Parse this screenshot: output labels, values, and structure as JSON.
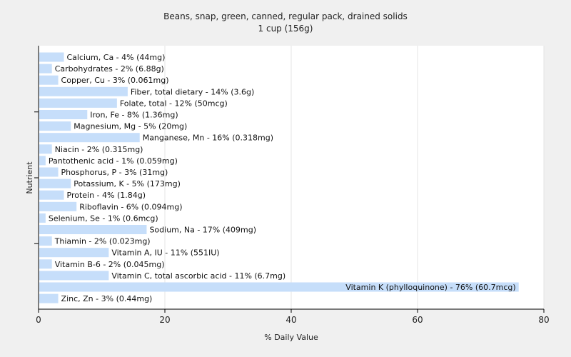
{
  "chart_data": {
    "type": "bar",
    "orientation": "horizontal",
    "title": "Beans, snap, green, canned, regular pack, drained solids",
    "subtitle": "1 cup (156g)",
    "xlabel": "% Daily Value",
    "ylabel": "Nutrient",
    "xlim": [
      0,
      80
    ],
    "xticks": [
      0,
      20,
      40,
      60,
      80
    ],
    "grid": true,
    "bar_color": "#c6defa",
    "categories": [
      "Calcium, Ca - 4% (44mg)",
      "Carbohydrates - 2% (6.88g)",
      "Copper, Cu - 3% (0.061mg)",
      "Fiber, total dietary - 14% (3.6g)",
      "Folate, total - 12% (50mcg)",
      "Iron, Fe - 8% (1.36mg)",
      "Magnesium, Mg - 5% (20mg)",
      "Manganese, Mn - 16% (0.318mg)",
      "Niacin - 2% (0.315mg)",
      "Pantothenic acid - 1% (0.059mg)",
      "Phosphorus, P - 3% (31mg)",
      "Potassium, K - 5% (173mg)",
      "Protein - 4% (1.84g)",
      "Riboflavin - 6% (0.094mg)",
      "Selenium, Se - 1% (0.6mcg)",
      "Sodium, Na - 17% (409mg)",
      "Thiamin - 2% (0.023mg)",
      "Vitamin A, IU - 11% (551IU)",
      "Vitamin B-6 - 2% (0.045mg)",
      "Vitamin C, total ascorbic acid - 11% (6.7mg)",
      "Vitamin K (phylloquinone) - 76% (60.7mcg)",
      "Zinc, Zn - 3% (0.44mg)"
    ],
    "values": [
      3.9,
      2.0,
      3.0,
      14.0,
      12.3,
      7.6,
      5.0,
      15.9,
      2.0,
      1.0,
      3.0,
      5.0,
      3.9,
      5.9,
      1.0,
      17.0,
      2.0,
      11.0,
      2.0,
      11.0,
      75.9,
      3.0
    ]
  }
}
